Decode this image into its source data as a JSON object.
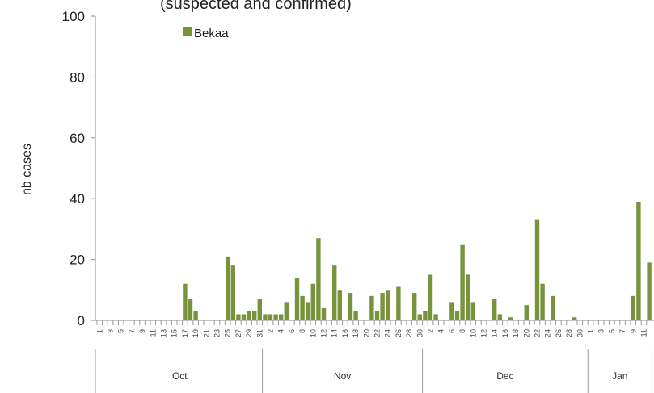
{
  "chart_data": {
    "type": "bar",
    "title": "(suspected and confirmed)",
    "ylabel": "nb cases",
    "xlabel": "",
    "ylim": [
      0,
      100
    ],
    "yticks": [
      0,
      20,
      40,
      60,
      80,
      100
    ],
    "grid": false,
    "legend_position": "top-left",
    "series": [
      {
        "name": "Bekaa",
        "color": "#77933c",
        "values": [
          0,
          0,
          0,
          0,
          0,
          0,
          0,
          0,
          0,
          0,
          0,
          0,
          0,
          0,
          0,
          0,
          12,
          7,
          3,
          0,
          0,
          0,
          0,
          0,
          21,
          18,
          2,
          2,
          3,
          3,
          7,
          2,
          2,
          2,
          2,
          6,
          0,
          14,
          8,
          6,
          12,
          27,
          4,
          0,
          18,
          10,
          0,
          9,
          3,
          0,
          0,
          8,
          3,
          9,
          10,
          0,
          11,
          0,
          0,
          9,
          2,
          3,
          15,
          2,
          0,
          0,
          6,
          3,
          25,
          15,
          6,
          0,
          0,
          0,
          7,
          2,
          0,
          1,
          0,
          0,
          5,
          0,
          33,
          12,
          0,
          8,
          0,
          0,
          0,
          1,
          0,
          0,
          0,
          0,
          0,
          0,
          0,
          0,
          0,
          0,
          8,
          39,
          0,
          19
        ]
      }
    ],
    "x_tick_labels": [
      "1",
      "3",
      "5",
      "7",
      "9",
      "11",
      "13",
      "15",
      "17",
      "19",
      "21",
      "23",
      "25",
      "27",
      "29",
      "31",
      "2",
      "4",
      "6",
      "8",
      "10",
      "12",
      "14",
      "16",
      "18",
      "20",
      "22",
      "24",
      "26",
      "28",
      "30",
      "2",
      "4",
      "6",
      "8",
      "10",
      "12",
      "14",
      "16",
      "18",
      "20",
      "22",
      "24",
      "26",
      "28",
      "30",
      "1",
      "3",
      "5",
      "7",
      "9",
      "11"
    ],
    "months": [
      {
        "label": "Oct",
        "days": 31
      },
      {
        "label": "Nov",
        "days": 30
      },
      {
        "label": "Dec",
        "days": 31
      },
      {
        "label": "Jan",
        "days": 12
      }
    ]
  }
}
